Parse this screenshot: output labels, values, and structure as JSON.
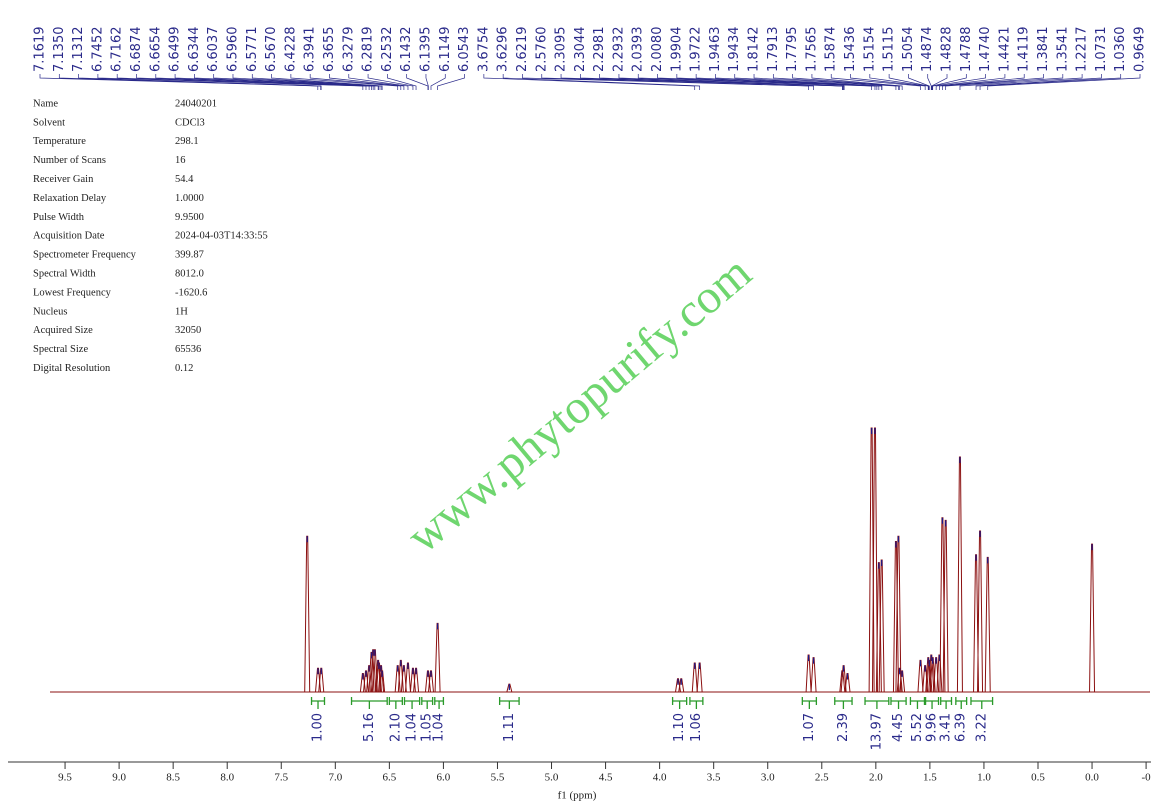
{
  "parameters": [
    {
      "name": "Name",
      "value": "24040201"
    },
    {
      "name": "Solvent",
      "value": "CDCl3"
    },
    {
      "name": "Temperature",
      "value": "298.1"
    },
    {
      "name": "Number of Scans",
      "value": "16"
    },
    {
      "name": "Receiver Gain",
      "value": "54.4"
    },
    {
      "name": "Relaxation Delay",
      "value": "1.0000"
    },
    {
      "name": "Pulse Width",
      "value": "9.9500"
    },
    {
      "name": "Acquisition Date",
      "value": "2024-04-03T14:33:55"
    },
    {
      "name": "Spectrometer Frequency",
      "value": "399.87"
    },
    {
      "name": "Spectral Width",
      "value": "8012.0"
    },
    {
      "name": "Lowest Frequency",
      "value": "-1620.6"
    },
    {
      "name": "Nucleus",
      "value": "1H"
    },
    {
      "name": "Acquired Size",
      "value": "32050"
    },
    {
      "name": "Spectral Size",
      "value": "65536"
    },
    {
      "name": "Digital Resolution",
      "value": "0.12"
    }
  ],
  "peak_labels": [
    "7.1619",
    "7.1350",
    "7.1312",
    "6.7452",
    "6.7162",
    "6.6874",
    "6.6654",
    "6.6499",
    "6.6344",
    "6.6037",
    "6.5960",
    "6.5771",
    "6.5670",
    "6.4228",
    "6.3941",
    "6.3655",
    "6.3279",
    "6.2819",
    "6.2532",
    "6.1432",
    "6.1395",
    "6.1149",
    "6.0543",
    "3.6754",
    "3.6296",
    "2.6219",
    "2.5760",
    "2.3095",
    "2.3044",
    "2.2981",
    "2.2932",
    "2.0393",
    "2.0080",
    "1.9904",
    "1.9722",
    "1.9463",
    "1.9434",
    "1.8142",
    "1.7913",
    "1.7795",
    "1.7565",
    "1.5874",
    "1.5436",
    "1.5154",
    "1.5115",
    "1.5054",
    "1.4874",
    "1.4828",
    "1.4788",
    "1.4740",
    "1.4421",
    "1.4119",
    "1.3841",
    "1.3541",
    "1.2217",
    "1.0731",
    "1.0360",
    "0.9649"
  ],
  "watermark": "www.phytopurify.com",
  "chart_data": {
    "type": "nmr",
    "x_label": "f1 (ppm)",
    "xlim": [
      10.0,
      -0.55
    ],
    "ylim": [
      0,
      100
    ],
    "xticks": [
      9.5,
      {
        "value": 9,
        "label": "9.0"
      },
      8.5,
      {
        "value": 8,
        "label": "8.0"
      },
      7.5,
      {
        "value": 7,
        "label": "7.0"
      },
      6.5,
      {
        "value": 6,
        "label": "6.0"
      },
      5.5,
      {
        "value": 5,
        "label": "5.0"
      },
      4.5,
      {
        "value": 4,
        "label": "4.0"
      },
      3.5,
      {
        "value": 3,
        "label": "3.0"
      },
      2.5,
      {
        "value": 2,
        "label": "2.0"
      },
      1.5,
      {
        "value": 1,
        "label": "1.0"
      },
      0.5,
      {
        "value": 0,
        "label": "0.0"
      },
      {
        "value": -0.5,
        "label": "-0"
      }
    ],
    "color": "#8b1010",
    "x": [
      7.26,
      7.16,
      7.13,
      6.745,
      6.716,
      6.687,
      6.665,
      6.65,
      6.634,
      6.604,
      6.596,
      6.577,
      6.567,
      6.423,
      6.394,
      6.366,
      6.328,
      6.282,
      6.253,
      6.143,
      6.115,
      6.054,
      5.39,
      3.83,
      3.8,
      3.675,
      3.63,
      2.622,
      2.576,
      2.31,
      2.298,
      2.262,
      2.039,
      2.008,
      1.972,
      1.946,
      1.814,
      1.791,
      1.779,
      1.757,
      1.587,
      1.544,
      1.515,
      1.505,
      1.487,
      1.474,
      1.442,
      1.412,
      1.384,
      1.354,
      1.222,
      1.073,
      1.036,
      0.965,
      0.0
    ],
    "values": [
      59,
      9,
      9,
      7,
      8,
      10,
      15,
      16,
      16,
      12,
      11,
      10,
      8,
      10,
      12,
      10,
      11,
      9,
      9,
      8,
      8,
      26,
      3,
      5,
      5,
      11,
      11,
      14,
      13,
      8,
      10,
      7,
      100,
      100,
      49,
      50,
      57,
      59,
      9,
      8,
      12,
      10,
      13,
      12,
      14,
      13,
      13,
      14,
      66,
      65,
      89,
      52,
      61,
      51,
      56
    ],
    "integral_color": "#2a9a2a",
    "integrals": [
      {
        "label": "1.00",
        "range": [
          7.22,
          7.1
        ]
      },
      {
        "label": "5.16",
        "range": [
          6.85,
          6.52
        ]
      },
      {
        "label": "2.10",
        "range": [
          6.5,
          6.38
        ]
      },
      {
        "label": "1.04",
        "range": [
          6.36,
          6.22
        ]
      },
      {
        "label": "1.05",
        "range": [
          6.2,
          6.1
        ]
      },
      {
        "label": "1.04",
        "range": [
          6.08,
          6.0
        ]
      },
      {
        "label": "1.11",
        "range": [
          5.48,
          5.3
        ]
      },
      {
        "label": "1.10",
        "range": [
          3.88,
          3.75
        ]
      },
      {
        "label": "1.06",
        "range": [
          3.72,
          3.6
        ]
      },
      {
        "label": "1.07",
        "range": [
          2.68,
          2.55
        ]
      },
      {
        "label": "2.39",
        "range": [
          2.38,
          2.22
        ]
      },
      {
        "label": "13.97",
        "range": [
          2.1,
          1.88
        ]
      },
      {
        "label": "4.45",
        "range": [
          1.86,
          1.72
        ]
      },
      {
        "label": "5.52",
        "range": [
          1.68,
          1.55
        ]
      },
      {
        "label": "9.96",
        "range": [
          1.54,
          1.42
        ]
      },
      {
        "label": "3.41",
        "range": [
          1.4,
          1.3
        ]
      },
      {
        "label": "6.39",
        "range": [
          1.26,
          1.16
        ]
      },
      {
        "label": "3.22",
        "range": [
          1.12,
          0.92
        ]
      }
    ]
  }
}
